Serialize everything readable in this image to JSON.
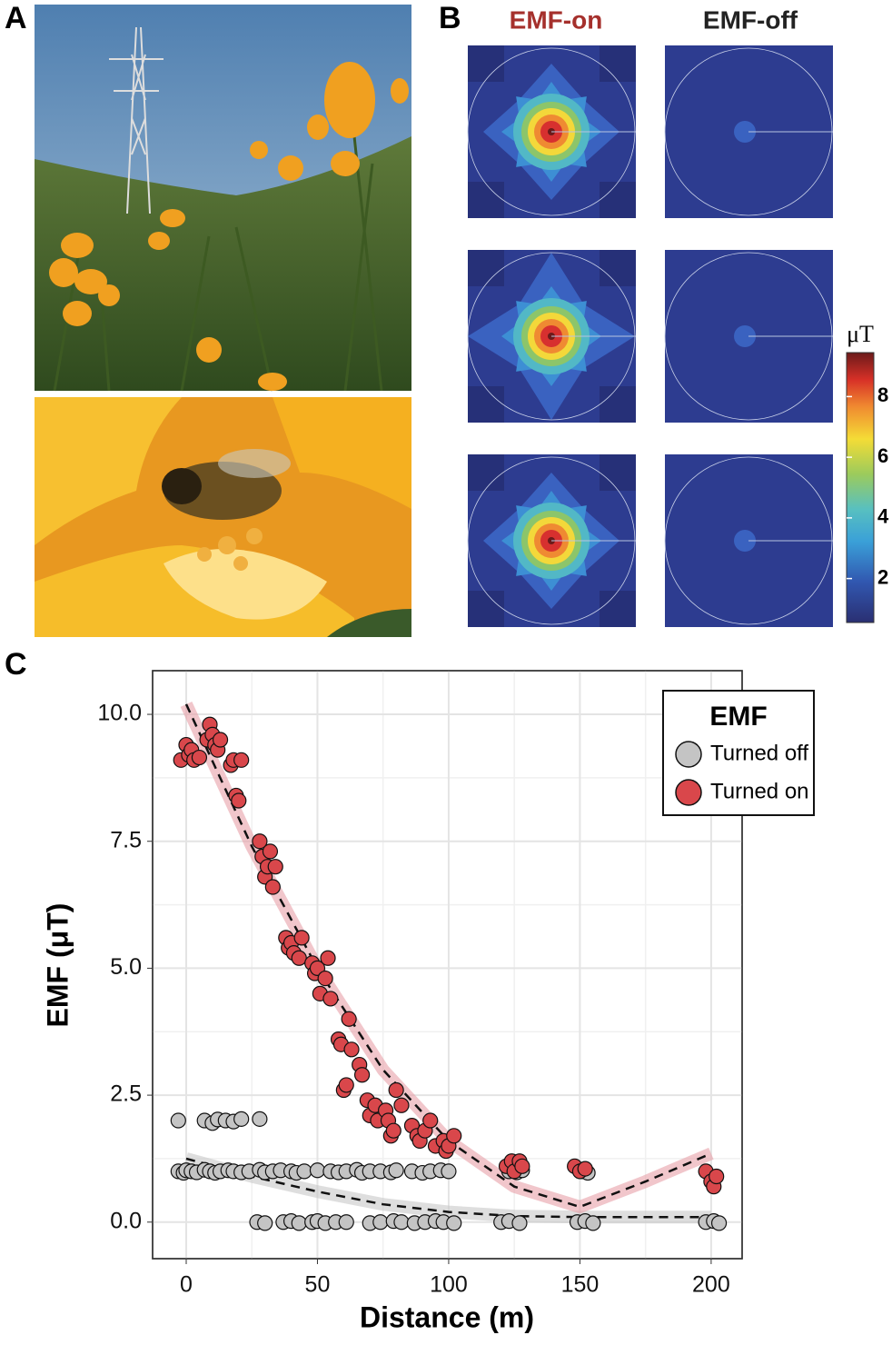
{
  "panel_labels": [
    "A",
    "B",
    "C"
  ],
  "heatmaps": {
    "columns": [
      "EMF-on",
      "EMF-off"
    ],
    "colorbar": {
      "label": "μT",
      "lim": [
        0.55,
        9.45
      ],
      "ticks": [
        2,
        4,
        6,
        8
      ]
    }
  },
  "chart_data": {
    "type": "scatter",
    "xlabel": "Distance (m)",
    "ylabel": "EMF (μT)",
    "xlim": [
      -12.8,
      211.8
    ],
    "ylim": [
      -0.72,
      10.86
    ],
    "xticks": [
      0,
      50,
      100,
      150,
      200
    ],
    "yticks": [
      {
        "value": 0,
        "label": "0.0"
      },
      2.5,
      {
        "value": 5,
        "label": "5.0"
      },
      7.5,
      {
        "value": 10,
        "label": "10.0"
      }
    ],
    "grid": true,
    "legend_title": "EMF",
    "legend": "top-right",
    "series": [
      {
        "name": "Turned off",
        "color": "#c4c4c4",
        "x": [
          -3,
          -1,
          0,
          2,
          4,
          7,
          9,
          11,
          13,
          16,
          18,
          21,
          24,
          28,
          30,
          33,
          36,
          40,
          42,
          45,
          50,
          55,
          58,
          61,
          65,
          67,
          70,
          74,
          78,
          80,
          86,
          90,
          93,
          97,
          100,
          123,
          126,
          128,
          151,
          153,
          -3,
          7,
          10,
          12,
          15,
          18,
          21,
          28,
          27,
          30,
          37,
          40,
          43,
          48,
          50,
          53,
          57,
          61,
          70,
          74,
          79,
          82,
          87,
          91,
          95,
          98,
          102,
          120,
          123,
          127,
          149,
          152,
          155,
          198,
          201,
          203
        ],
        "values": [
          1.0,
          0.97,
          1.02,
          1.0,
          0.98,
          1.03,
          1.0,
          0.97,
          1.0,
          1.02,
          1.0,
          0.98,
          1.0,
          1.03,
          0.98,
          1.0,
          1.02,
          1.0,
          0.97,
          1.0,
          1.02,
          1.0,
          0.98,
          1.0,
          1.03,
          0.97,
          1.0,
          1.0,
          0.98,
          1.02,
          1.0,
          0.97,
          1.0,
          1.02,
          1.0,
          1.0,
          0.98,
          1.02,
          1.0,
          0.97,
          2.0,
          2.0,
          1.95,
          2.02,
          2.0,
          1.98,
          2.03,
          2.03,
          0.0,
          -0.02,
          0.0,
          0.02,
          -0.02,
          0.0,
          0.02,
          -0.02,
          0.0,
          0.0,
          -0.02,
          0.0,
          0.02,
          0.0,
          -0.02,
          0.0,
          0.02,
          0.0,
          -0.02,
          0.0,
          0.02,
          -0.02,
          0.0,
          0.02,
          -0.02,
          0.0,
          0.02,
          -0.02
        ]
      },
      {
        "name": "Turned on",
        "color": "#d9474b",
        "x": [
          -2,
          0,
          1,
          2,
          3,
          5,
          8,
          9,
          10,
          11,
          12,
          13,
          17,
          18,
          19,
          20,
          21,
          28,
          29,
          30,
          31,
          32,
          33,
          34,
          38,
          39,
          40,
          41,
          43,
          44,
          48,
          49,
          50,
          51,
          53,
          54,
          55,
          58,
          59,
          60,
          61,
          62,
          63,
          66,
          67,
          69,
          70,
          72,
          73,
          76,
          77,
          78,
          79,
          80,
          82,
          86,
          88,
          89,
          91,
          93,
          95,
          98,
          99,
          100,
          102,
          122,
          124,
          125,
          127,
          128,
          148,
          150,
          152,
          198,
          200,
          201,
          202
        ],
        "values": [
          9.1,
          9.4,
          9.2,
          9.3,
          9.1,
          9.15,
          9.5,
          9.8,
          9.6,
          9.4,
          9.3,
          9.5,
          9.0,
          9.1,
          8.4,
          8.3,
          9.1,
          7.5,
          7.2,
          6.8,
          7.0,
          7.3,
          6.6,
          7.0,
          5.6,
          5.4,
          5.5,
          5.3,
          5.2,
          5.6,
          5.1,
          4.9,
          5.0,
          4.5,
          4.8,
          5.2,
          4.4,
          3.6,
          3.5,
          2.6,
          2.7,
          4.0,
          3.4,
          3.1,
          2.9,
          2.4,
          2.1,
          2.3,
          2.0,
          2.2,
          2.0,
          1.7,
          1.8,
          2.6,
          2.3,
          1.9,
          1.7,
          1.6,
          1.8,
          2.0,
          1.5,
          1.6,
          1.4,
          1.5,
          1.7,
          1.1,
          1.2,
          1.0,
          1.2,
          1.1,
          1.1,
          1.0,
          1.05,
          1.0,
          0.8,
          0.7,
          0.9
        ]
      }
    ],
    "fits": [
      {
        "color": "#c8c8c8",
        "x": [
          0,
          25,
          50,
          75,
          100,
          125,
          150,
          175,
          200
        ],
        "values": [
          1.25,
          0.9,
          0.6,
          0.35,
          0.2,
          0.12,
          0.1,
          0.1,
          0.1
        ]
      },
      {
        "color": "#e8a0a8",
        "x": [
          0,
          25,
          50,
          75,
          100,
          125,
          150,
          175,
          200
        ],
        "values": [
          10.2,
          7.4,
          5.0,
          3.0,
          1.6,
          0.7,
          0.3,
          0.8,
          1.35
        ]
      }
    ]
  }
}
